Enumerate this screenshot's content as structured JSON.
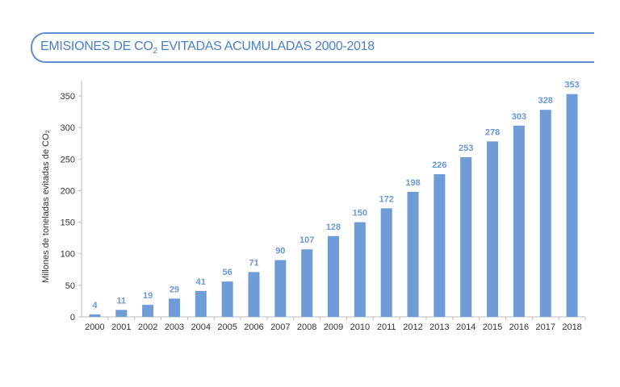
{
  "chart_data": {
    "type": "bar",
    "title": "EMISIONES DE CO",
    "title_sub": "2",
    "title_rest": " EVITADAS ACUMULADAS 2000-2018",
    "ylabel": "Millones de toneladas evitadas de CO₂",
    "xlabel": "",
    "ylim": [
      0,
      375
    ],
    "yticks": [
      0,
      50,
      100,
      150,
      200,
      250,
      300,
      350
    ],
    "grid": false,
    "categories": [
      "2000",
      "2001",
      "2002",
      "2003",
      "2004",
      "2005",
      "2006",
      "2007",
      "2008",
      "2009",
      "2010",
      "2011",
      "2012",
      "2013",
      "2014",
      "2015",
      "2016",
      "2017",
      "2018"
    ],
    "values": [
      4,
      11,
      19,
      29,
      41,
      56,
      71,
      90,
      107,
      128,
      150,
      172,
      198,
      226,
      253,
      278,
      303,
      328,
      353
    ],
    "colors": {
      "bar": "#6f9bd6",
      "label": "#6a98d6",
      "title": "#4a7fc4"
    }
  }
}
